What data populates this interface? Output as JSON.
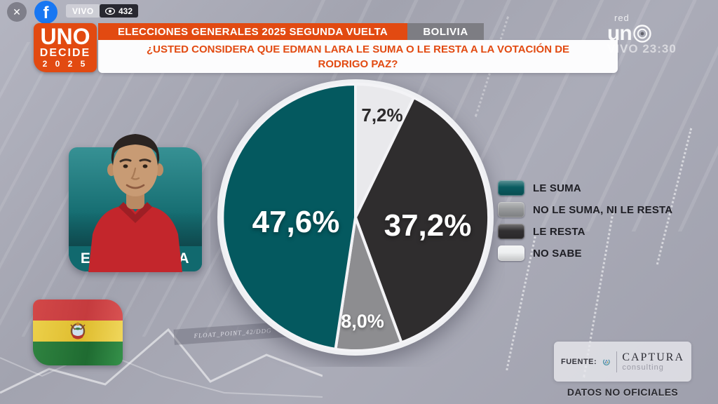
{
  "topbar": {
    "close": "✕",
    "facebook_f": "f",
    "live_badge": "VIVO",
    "viewer_count": "432"
  },
  "show_logo": {
    "line1": "UNO",
    "line2": "DECIDE",
    "line3": "2 0 2 5"
  },
  "header": {
    "banner": "ELECCIONES GENERALES 2025 SEGUNDA VUELTA",
    "country": "BOLIVIA",
    "question_line1": "¿USTED CONSIDERA QUE EDMAN LARA LE SUMA O LE RESTA A LA VOTACIÓN DE",
    "question_line2": "RODRIGO PAZ?",
    "accent_color": "#e24a11"
  },
  "channel": {
    "name_small": "red",
    "name_big": "un",
    "watermark": "VIVO 23:30"
  },
  "candidate": {
    "name": "EDMAN LARA"
  },
  "chart_data": {
    "type": "pie",
    "title": "¿Usted considera que Edman Lara le suma o le resta a la votación de Rodrigo Paz?",
    "direction": "clockwise",
    "start_angle_deg": 0,
    "legend_position": "right",
    "slices": [
      {
        "label": "NO SABE",
        "value": 7.2,
        "display": "7,2%",
        "color": "#e9e9ec"
      },
      {
        "label": "LE RESTA",
        "value": 37.2,
        "display": "37,2%",
        "color": "#2f2d2e"
      },
      {
        "label": "NO LE SUMA, NI LE RESTA",
        "value": 8.0,
        "display": "8,0%",
        "color": "#8d8d90"
      },
      {
        "label": "LE SUMA",
        "value": 47.6,
        "display": "47,6%",
        "color": "#04595f"
      }
    ]
  },
  "legend": {
    "items": [
      {
        "label": "LE SUMA",
        "color": "#0a5c61"
      },
      {
        "label": "NO LE SUMA, NI LE RESTA",
        "color": "#97999b"
      },
      {
        "label": "LE RESTA",
        "color": "#323032"
      },
      {
        "label": "NO SABE",
        "color": "#eef0f1"
      }
    ]
  },
  "background": {
    "texture_label": "FLOAT_POINT_42/DDG"
  },
  "footer": {
    "source_label": "FUENTE:",
    "source_name": "CAPTURA",
    "source_sub": "consulting",
    "disclaimer": "DATOS NO OFICIALES"
  }
}
